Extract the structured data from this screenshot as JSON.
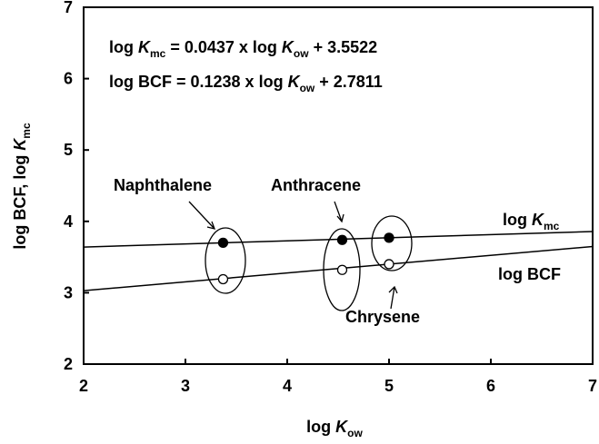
{
  "chart_data": {
    "type": "scatter",
    "xlim": [
      2,
      7
    ],
    "ylim": [
      2,
      7
    ],
    "xticks": [
      2,
      3,
      4,
      5,
      6,
      7
    ],
    "yticks": [
      2,
      3,
      4,
      5,
      6,
      7
    ],
    "x_label": [
      "log ",
      "K",
      "ow"
    ],
    "y_label": [
      "log BCF, log ",
      "K",
      "mc"
    ],
    "equations": [
      [
        "log ",
        "K",
        "mc",
        " = 0.0437 x log ",
        "K",
        "ow",
        " + 3.5522"
      ],
      [
        "log BCF = 0.1238 x log ",
        "K",
        "ow",
        " + 2.7811"
      ]
    ],
    "series": [
      {
        "marker": "filled",
        "color": "#000000",
        "x": [
          3.37,
          4.54,
          5.0
        ],
        "values": [
          3.7,
          3.74,
          3.77
        ]
      },
      {
        "marker": "open",
        "color": "#000000",
        "x": [
          3.37,
          4.54,
          5.0
        ],
        "values": [
          3.19,
          3.32,
          3.4
        ]
      }
    ],
    "fit_lines": [
      {
        "x": [
          2,
          7
        ],
        "values": [
          3.64,
          3.858
        ]
      },
      {
        "x": [
          2,
          7
        ],
        "values": [
          3.029,
          3.648
        ]
      }
    ],
    "line_labels": [
      [
        "log ",
        "K",
        "mc"
      ],
      [
        "log BCF"
      ]
    ],
    "compound_labels": [
      "Naphthalene",
      "Anthracene",
      "Chrysene"
    ]
  }
}
